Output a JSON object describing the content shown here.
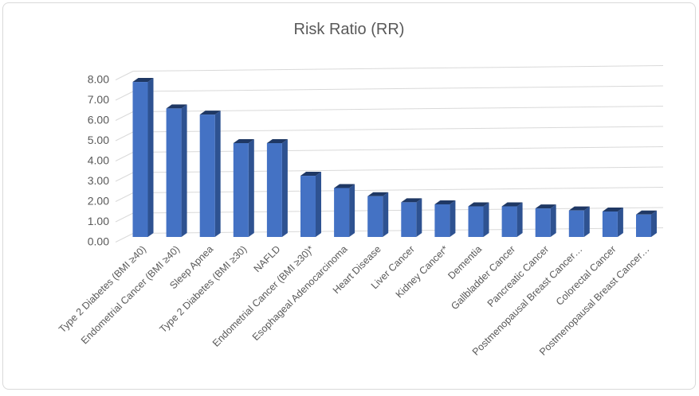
{
  "frame": {
    "background_color": "#ffffff",
    "border_color": "#d9d9d9"
  },
  "chart_data": {
    "type": "bar",
    "style": "3d-clustered-column",
    "title": "Risk Ratio (RR)",
    "categories": [
      "Type 2 Diabetes (BMI ≥40)",
      "Endometrial Cancer (BMI ≥40)",
      "Sleep Apnea",
      "Type 2 Diabetes (BMI ≥30)",
      "NAFLD",
      "Endometrial Cancer (BMI ≥30)*",
      "Esophageal Adenocarcinoma",
      "Heart Disease",
      "Liver Cancer",
      "Kidney Cancer*",
      "Dementia",
      "Gallbladder Cancer",
      "Pancreatic Cancer",
      "Postmenopausal Breast Cancer…",
      "Colorectal Cancer",
      "Postmenopausal Breast Cancer…"
    ],
    "values": [
      7.6,
      6.3,
      6.0,
      4.6,
      4.6,
      3.0,
      2.4,
      2.0,
      1.7,
      1.6,
      1.5,
      1.5,
      1.4,
      1.3,
      1.25,
      1.1
    ],
    "xlabel": "",
    "ylabel": "",
    "ylim": [
      0,
      8
    ],
    "ytick_step": 1,
    "yticks": [
      "0.00",
      "1.00",
      "2.00",
      "3.00",
      "4.00",
      "5.00",
      "6.00",
      "7.00",
      "8.00"
    ],
    "grid": true,
    "legend_position": "none",
    "colors": {
      "bar_front": "#4472c4",
      "bar_side": "#2e5291",
      "bar_top": "#1f3864",
      "gridline": "#d9d9d9",
      "text": "#595959"
    }
  }
}
